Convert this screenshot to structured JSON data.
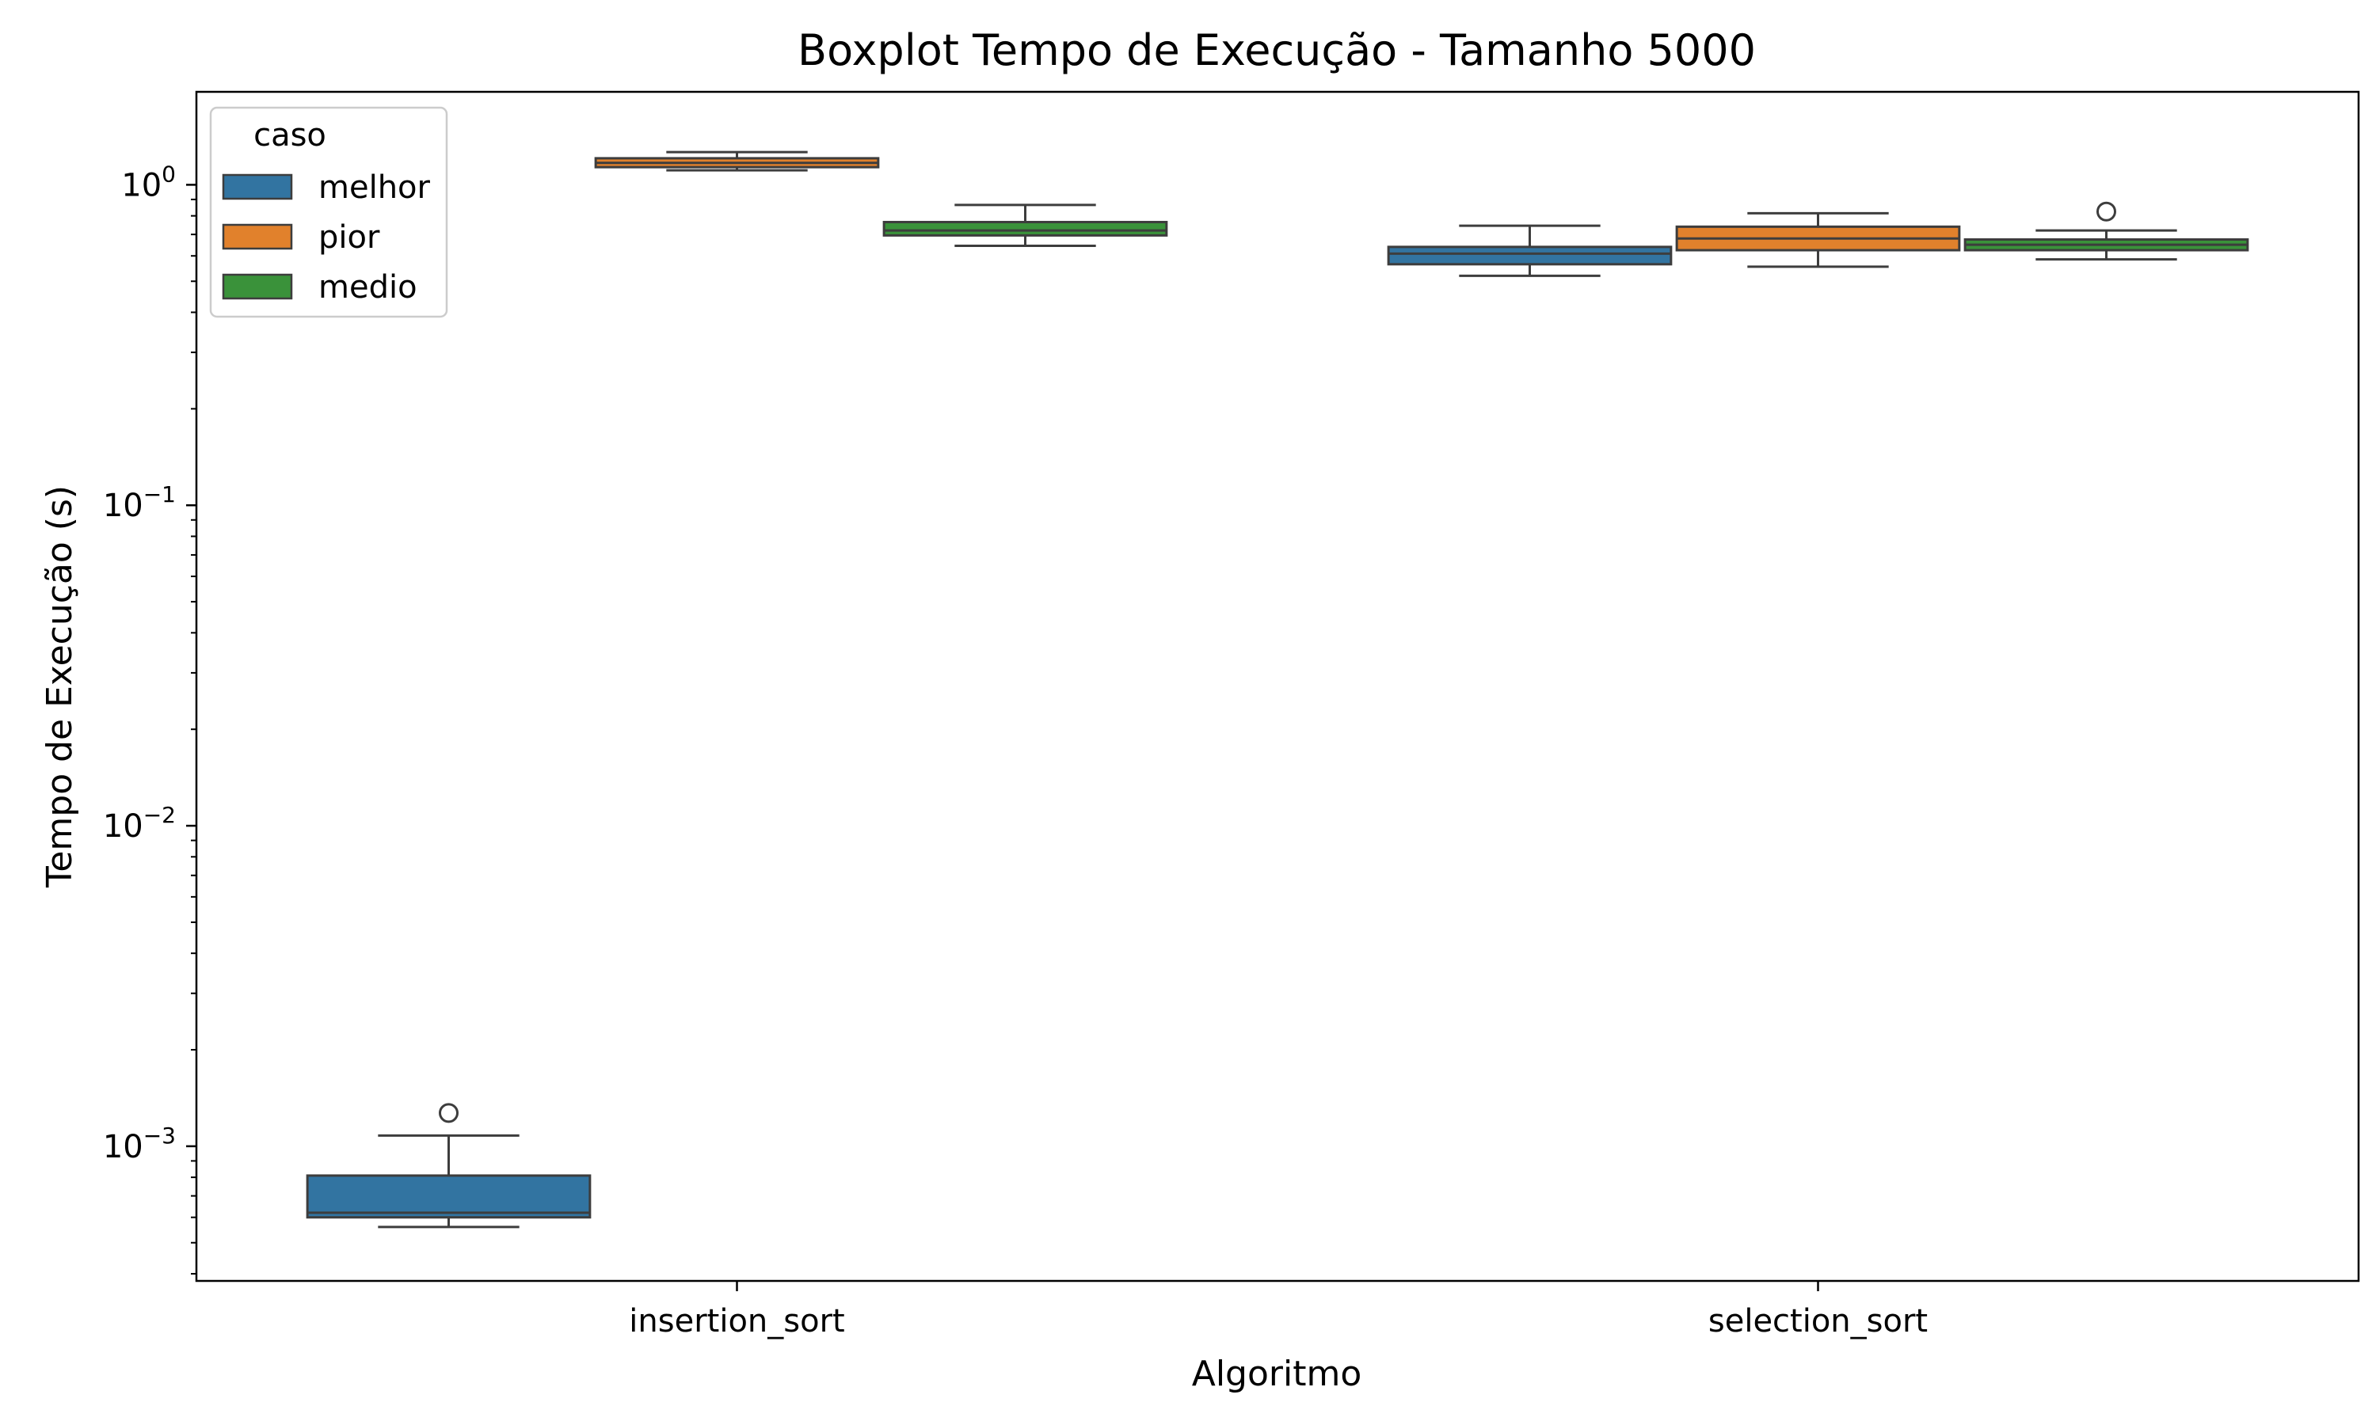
{
  "chart_data": {
    "type": "boxplot",
    "title": "Boxplot Tempo de Execução - Tamanho 5000",
    "xlabel": "Algoritmo",
    "ylabel": "Tempo de Execução (s)",
    "yscale": "log",
    "ylim": [
      0.00038,
      1.95
    ],
    "categories": [
      "insertion_sort",
      "selection_sort"
    ],
    "y_ticks": [
      {
        "value": 0.001,
        "base": "10",
        "exp": "−3"
      },
      {
        "value": 0.01,
        "base": "10",
        "exp": "−2"
      },
      {
        "value": 0.1,
        "base": "10",
        "exp": "−1"
      },
      {
        "value": 1,
        "base": "10",
        "exp": "0"
      }
    ],
    "grid": false,
    "legend": {
      "title": "caso",
      "placement": "upper-left",
      "entries": [
        "melhor",
        "pior",
        "medio"
      ]
    },
    "series": [
      {
        "name": "melhor",
        "color": "#3274a1",
        "boxes": [
          {
            "category": "insertion_sort",
            "whislo": 0.00056,
            "q1": 0.0006,
            "med": 0.00062,
            "q3": 0.00081,
            "whishi": 0.00108,
            "fliers": [
              0.00127
            ]
          },
          {
            "category": "selection_sort",
            "whislo": 0.52,
            "q1": 0.565,
            "med": 0.61,
            "q3": 0.64,
            "whishi": 0.745,
            "fliers": []
          }
        ]
      },
      {
        "name": "pior",
        "color": "#e1812c",
        "boxes": [
          {
            "category": "insertion_sort",
            "whislo": 1.11,
            "q1": 1.135,
            "med": 1.17,
            "q3": 1.21,
            "whishi": 1.265,
            "fliers": []
          },
          {
            "category": "selection_sort",
            "whislo": 0.555,
            "q1": 0.625,
            "med": 0.68,
            "q3": 0.74,
            "whishi": 0.815,
            "fliers": []
          }
        ]
      },
      {
        "name": "medio",
        "color": "#3a923a",
        "boxes": [
          {
            "category": "insertion_sort",
            "whislo": 0.645,
            "q1": 0.695,
            "med": 0.72,
            "q3": 0.765,
            "whishi": 0.865,
            "fliers": []
          },
          {
            "category": "selection_sort",
            "whislo": 0.585,
            "q1": 0.625,
            "med": 0.65,
            "q3": 0.675,
            "whishi": 0.72,
            "fliers": [
              0.825
            ]
          }
        ]
      }
    ]
  }
}
